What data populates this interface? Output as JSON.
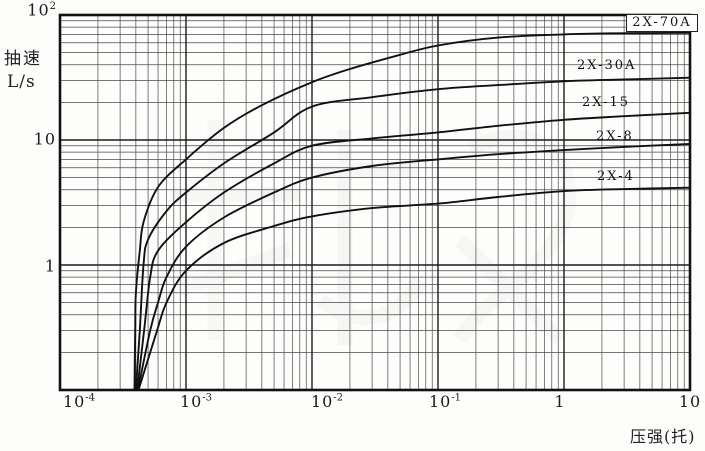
{
  "figure": {
    "description_visible_text_only": true,
    "watermark": "faint illegible light-gray logo watermark behind grid"
  },
  "chart_data": {
    "type": "line",
    "title": "",
    "grid": "full log-log graph paper, minor lines 2-9 in every decade",
    "legend_position": "labels next to curves at right side",
    "x_axis": {
      "title": "压强(托)",
      "scale": "log",
      "range": [
        0.0001,
        10
      ],
      "ticks": [
        {
          "base": "10",
          "sup": "-4",
          "value": 0.0001
        },
        {
          "base": "10",
          "sup": "-3",
          "value": 0.001
        },
        {
          "base": "10",
          "sup": "-2",
          "value": 0.01
        },
        {
          "base": "10",
          "sup": "-1",
          "value": 0.1
        },
        {
          "base": "1",
          "sup": "",
          "value": 1
        },
        {
          "base": "10",
          "sup": "",
          "value": 10
        }
      ]
    },
    "y_axis": {
      "title": "抽速",
      "unit": "L/s",
      "scale": "log",
      "range": [
        0.1,
        100
      ],
      "ticks": [
        {
          "base": "10",
          "sup": "2",
          "value": 100
        },
        {
          "base": "10",
          "sup": "",
          "value": 10
        },
        {
          "base": "1",
          "sup": "",
          "value": 1
        }
      ]
    },
    "series": [
      {
        "name": "2X-70A",
        "boxed_label": true,
        "points": [
          [
            0.00039,
            0.1
          ],
          [
            0.000395,
            0.3
          ],
          [
            0.0004,
            0.6
          ],
          [
            0.00043,
            1.3
          ],
          [
            0.00046,
            2.2
          ],
          [
            0.0006,
            4.2
          ],
          [
            0.001,
            7
          ],
          [
            0.002,
            12.5
          ],
          [
            0.004,
            19
          ],
          [
            0.01,
            29
          ],
          [
            0.02,
            37
          ],
          [
            0.05,
            48
          ],
          [
            0.1,
            57
          ],
          [
            0.3,
            66
          ],
          [
            1,
            70
          ],
          [
            3,
            71.5
          ],
          [
            10,
            72
          ]
        ]
      },
      {
        "name": "2X-30A",
        "boxed_label": false,
        "points": [
          [
            0.0004,
            0.1
          ],
          [
            0.00043,
            0.3
          ],
          [
            0.00046,
            1.0
          ],
          [
            0.0005,
            1.6
          ],
          [
            0.0007,
            2.7
          ],
          [
            0.001,
            3.8
          ],
          [
            0.002,
            6.5
          ],
          [
            0.005,
            11.5
          ],
          [
            0.01,
            18.5
          ],
          [
            0.03,
            22
          ],
          [
            0.1,
            25.5
          ],
          [
            0.3,
            27.5
          ],
          [
            1,
            29.5
          ],
          [
            3,
            30.5
          ],
          [
            10,
            31.5
          ]
        ]
      },
      {
        "name": "2X-15",
        "boxed_label": false,
        "points": [
          [
            0.00041,
            0.1
          ],
          [
            0.000465,
            0.3
          ],
          [
            0.00052,
            0.8
          ],
          [
            0.0006,
            1.3
          ],
          [
            0.001,
            2.2
          ],
          [
            0.002,
            3.8
          ],
          [
            0.005,
            6.5
          ],
          [
            0.01,
            9
          ],
          [
            0.03,
            10.3
          ],
          [
            0.1,
            11.5
          ],
          [
            0.3,
            13
          ],
          [
            1,
            14.5
          ],
          [
            3,
            15.5
          ],
          [
            10,
            16.5
          ]
        ]
      },
      {
        "name": "2X-8",
        "boxed_label": false,
        "points": [
          [
            0.000415,
            0.1
          ],
          [
            0.00052,
            0.3
          ],
          [
            0.0006,
            0.5
          ],
          [
            0.0007,
            0.8
          ],
          [
            0.001,
            1.4
          ],
          [
            0.002,
            2.4
          ],
          [
            0.005,
            3.8
          ],
          [
            0.01,
            5
          ],
          [
            0.03,
            6.2
          ],
          [
            0.1,
            7
          ],
          [
            0.3,
            7.7
          ],
          [
            1,
            8.3
          ],
          [
            3,
            8.8
          ],
          [
            10,
            9.3
          ]
        ]
      },
      {
        "name": "2X-4",
        "boxed_label": false,
        "points": [
          [
            0.00042,
            0.1
          ],
          [
            0.00059,
            0.3
          ],
          [
            0.0007,
            0.5
          ],
          [
            0.001,
            0.9
          ],
          [
            0.002,
            1.5
          ],
          [
            0.005,
            2.05
          ],
          [
            0.01,
            2.45
          ],
          [
            0.03,
            2.85
          ],
          [
            0.1,
            3.1
          ],
          [
            0.3,
            3.5
          ],
          [
            1,
            3.9
          ],
          [
            3,
            4.05
          ],
          [
            10,
            4.15
          ]
        ]
      }
    ],
    "colors": {
      "curve": "#111111",
      "grid_minor": "#4a4a4a",
      "grid_major": "#1c1c1c",
      "border": "#111111",
      "background": "#fdfdfc"
    }
  }
}
